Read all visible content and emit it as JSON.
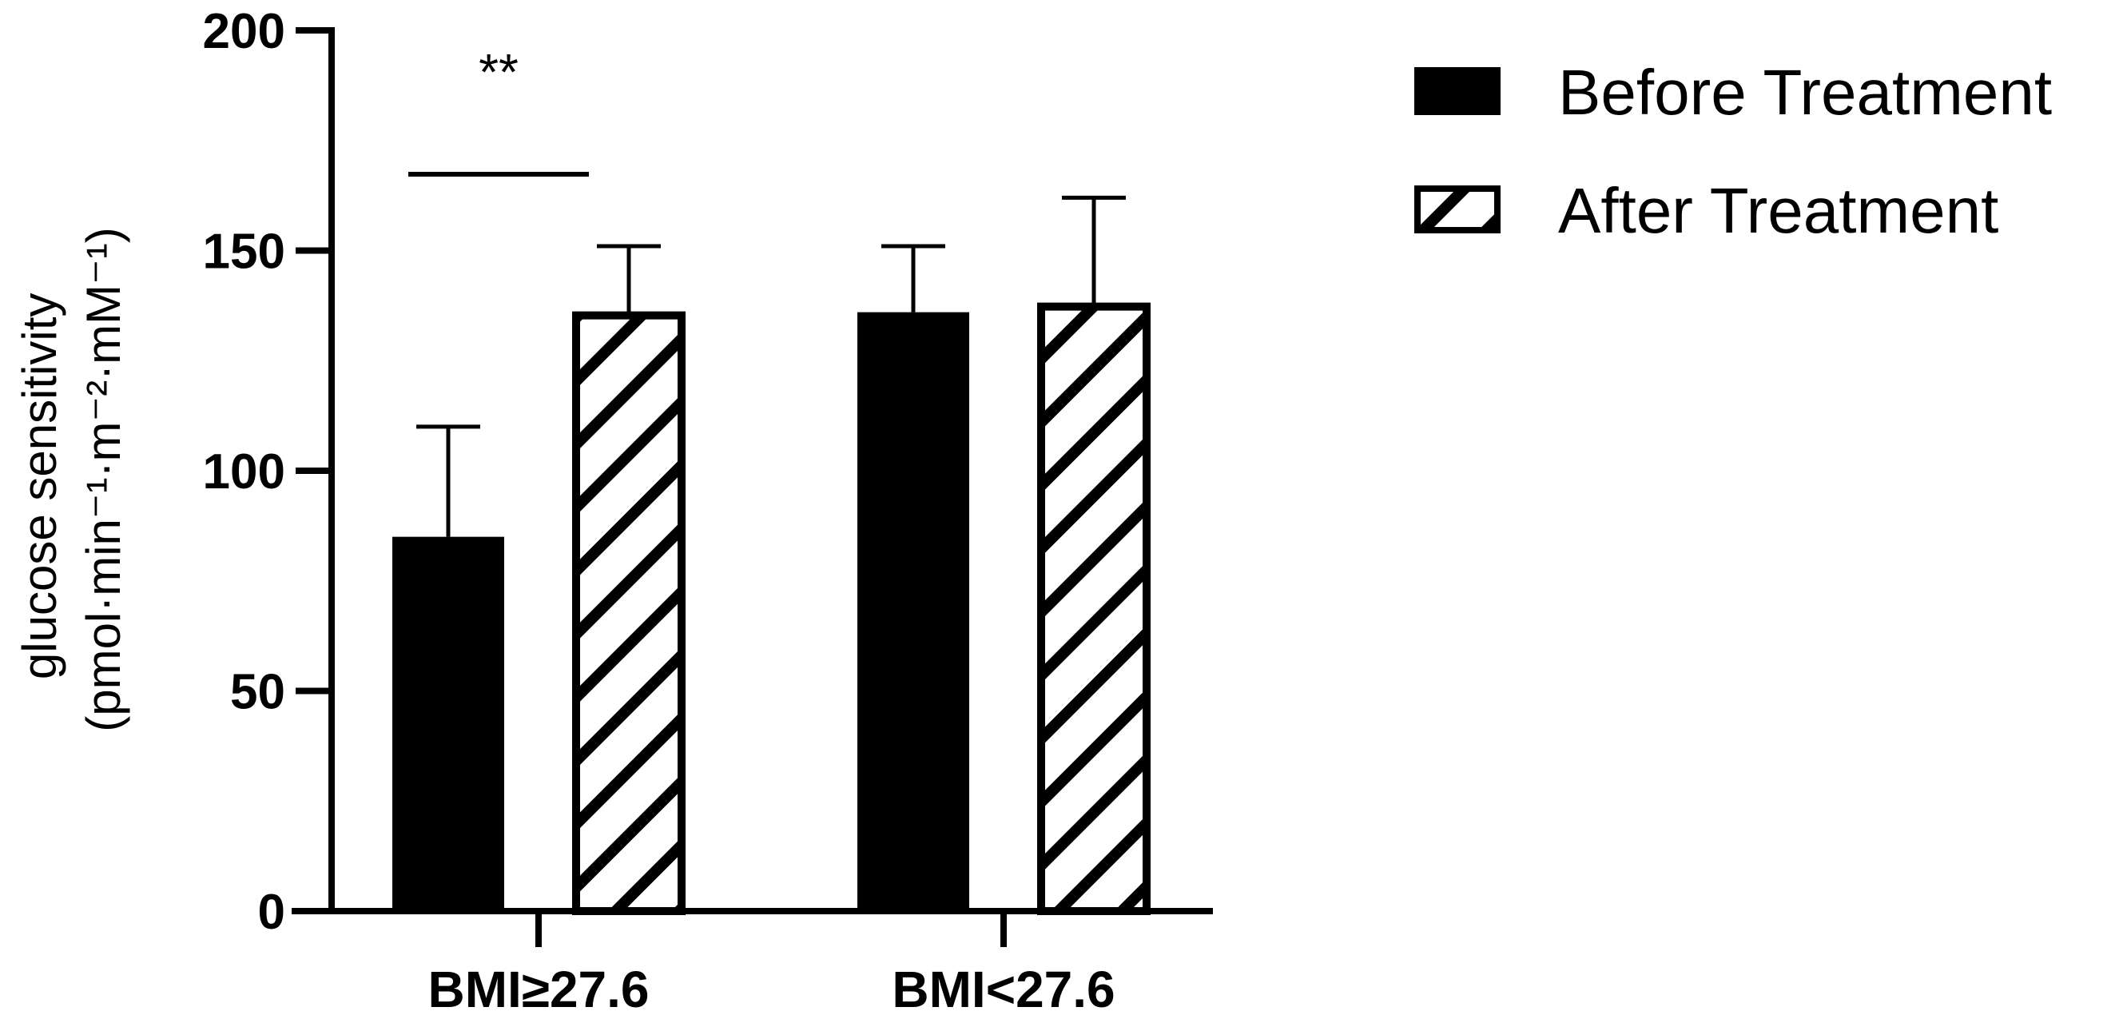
{
  "chart_data": {
    "type": "bar",
    "categories": [
      "BMI≥27.6",
      "BMI<27.6"
    ],
    "series": [
      {
        "name": "Before Treatment",
        "pattern": "solid",
        "values": [
          85,
          136
        ],
        "error_upper": [
          110,
          151
        ]
      },
      {
        "name": "After Treatment",
        "pattern": "hatched",
        "values": [
          136,
          138
        ],
        "error_upper": [
          151,
          162
        ]
      }
    ],
    "ylabel_line1": "glucose sensitivity",
    "ylabel_line2": "(pmol·min⁻¹·m⁻²·mM⁻¹)",
    "ylim": [
      0,
      200
    ],
    "yticks": [
      0,
      50,
      100,
      150,
      200
    ],
    "legend_position": "top-right",
    "annotations": [
      {
        "text": "**",
        "from": "BMI≥27.6 Before Treatment",
        "to": "BMI≥27.6 After Treatment"
      }
    ],
    "colors": {
      "bar_fill": "#000000",
      "hatch": "#000000",
      "background": "#ffffff"
    }
  }
}
